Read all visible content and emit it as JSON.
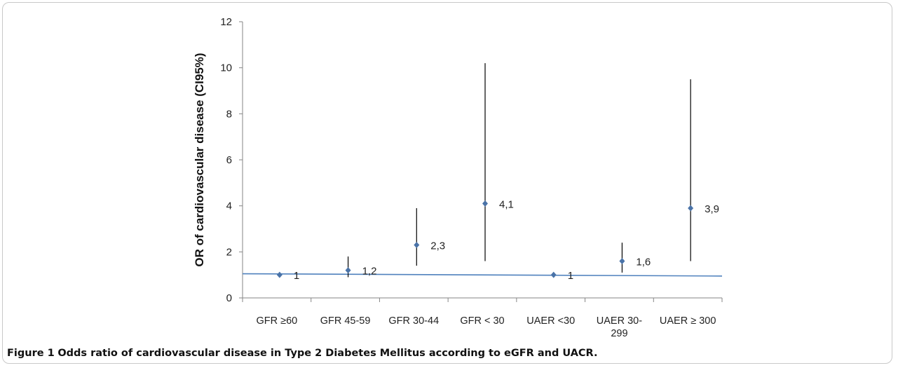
{
  "chart_data": {
    "type": "scatter",
    "title": "",
    "xlabel": "",
    "ylabel": "OR of cardiovascular disease  (CI95%)",
    "ylim": [
      0,
      12
    ],
    "yticks": [
      "0",
      "2",
      "4",
      "6",
      "8",
      "10",
      "12"
    ],
    "categories": [
      [
        "GFR ≥60"
      ],
      [
        "GFR 45-59"
      ],
      [
        "GFR 30-44"
      ],
      [
        "GFR < 30"
      ],
      [
        "UAER <30"
      ],
      [
        "UAER 30-",
        "299"
      ],
      [
        "UAER ≥ 300"
      ]
    ],
    "values": [
      1,
      1.2,
      2.3,
      4.1,
      1,
      1.6,
      3.9
    ],
    "ci_lower": [
      1,
      0.9,
      1.4,
      1.6,
      1,
      1.1,
      1.6
    ],
    "ci_upper": [
      1,
      1.8,
      3.9,
      10.2,
      1,
      2.4,
      9.5
    ],
    "data_labels": [
      "1",
      "1,2",
      "2,3",
      "4,1",
      "1",
      "1,6",
      "3,9"
    ],
    "reference_line": {
      "y_start": 1.05,
      "y_end": 0.95
    },
    "colors": {
      "marker": "#4a73a8",
      "reference_line": "#4f81bd",
      "error_bar": "#000000",
      "axis": "#868686"
    },
    "grid": false,
    "legend": "none"
  },
  "caption": {
    "label": "Figure 1",
    "text": "Odds ratio of cardiovascular disease in Type 2 Diabetes Mellitus according to eGFR and UACR."
  }
}
